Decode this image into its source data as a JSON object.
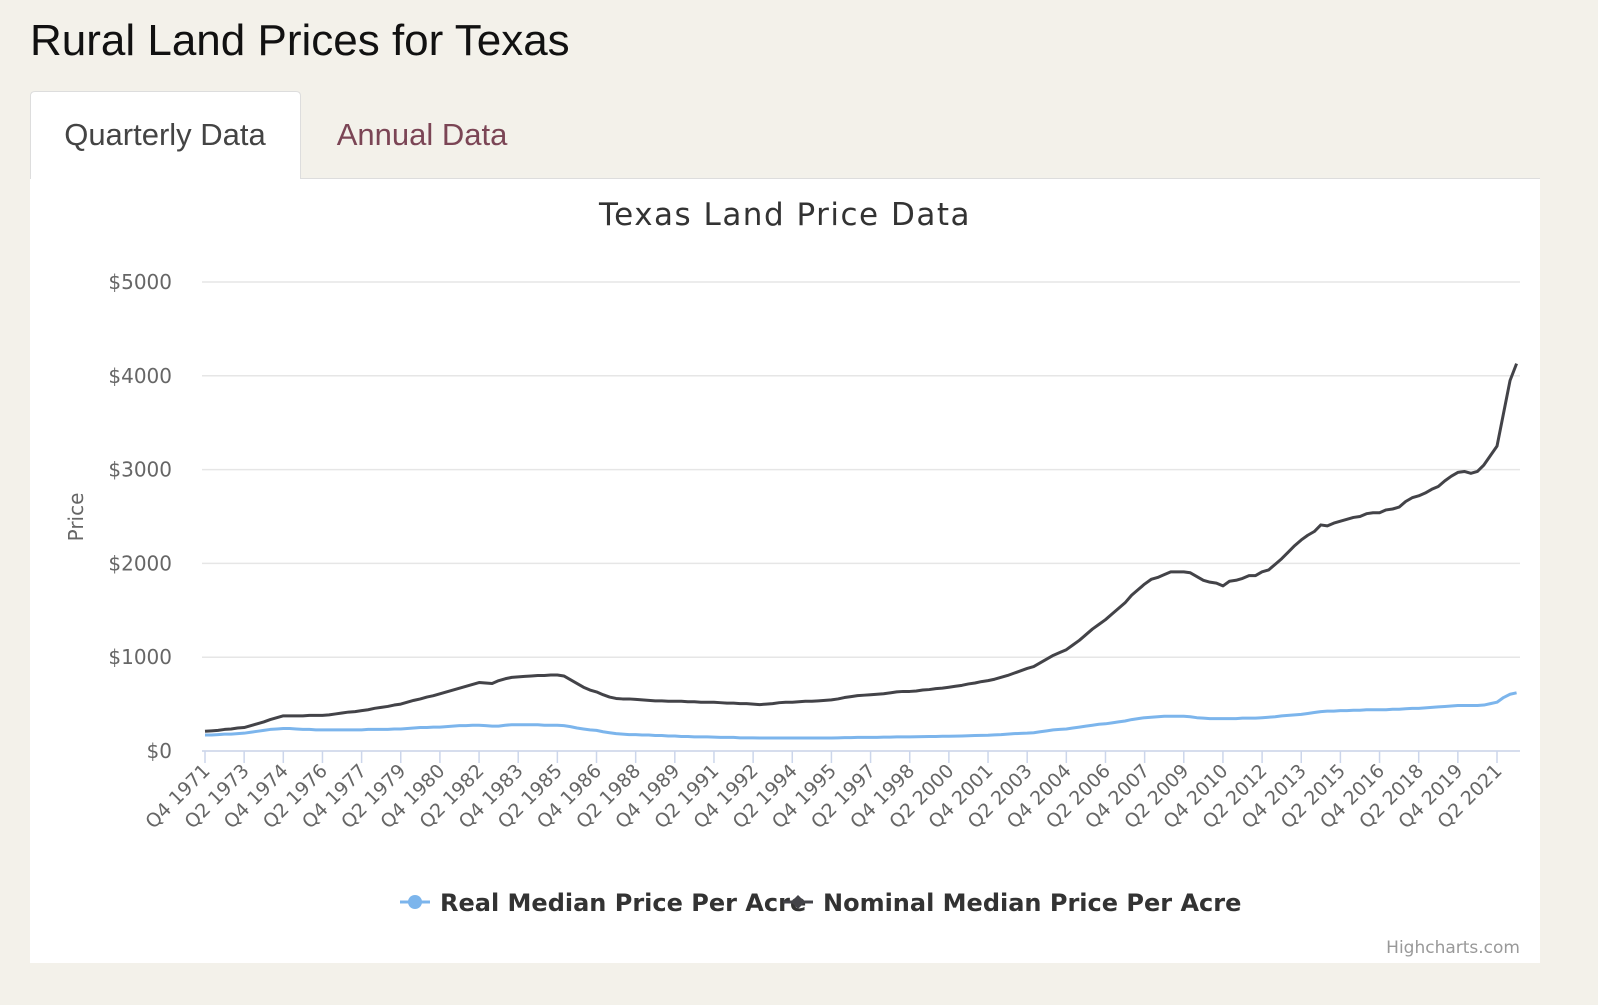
{
  "header": {
    "title": "Rural Land Prices for Texas"
  },
  "tabs": [
    "Quarterly Data",
    "Annual Data"
  ],
  "chart_data": {
    "type": "line",
    "title": "Texas Land Price Data",
    "y_axis_title": "Price",
    "credits": "Highcharts.com",
    "ylim": [
      0,
      5000
    ],
    "yticks": [
      {
        "value": 0,
        "label": "$0"
      },
      {
        "value": 1000,
        "label": "$1000"
      },
      {
        "value": 2000,
        "label": "$2000"
      },
      {
        "value": 3000,
        "label": "$3000"
      },
      {
        "value": 4000,
        "label": "$4000"
      },
      {
        "value": 5000,
        "label": "$5000"
      }
    ],
    "grid": true,
    "legend": "bottom",
    "categories": [
      "Q4 1971",
      null,
      null,
      null,
      null,
      null,
      "Q2 1973",
      null,
      null,
      null,
      null,
      null,
      "Q4 1974",
      null,
      null,
      null,
      null,
      null,
      "Q2 1976",
      null,
      null,
      null,
      null,
      null,
      "Q4 1977",
      null,
      null,
      null,
      null,
      null,
      "Q2 1979",
      null,
      null,
      null,
      null,
      null,
      "Q4 1980",
      null,
      null,
      null,
      null,
      null,
      "Q2 1982",
      null,
      null,
      null,
      null,
      null,
      "Q4 1983",
      null,
      null,
      null,
      null,
      null,
      "Q2 1985",
      null,
      null,
      null,
      null,
      null,
      "Q4 1986",
      null,
      null,
      null,
      null,
      null,
      "Q2 1988",
      null,
      null,
      null,
      null,
      null,
      "Q4 1989",
      null,
      null,
      null,
      null,
      null,
      "Q2 1991",
      null,
      null,
      null,
      null,
      null,
      "Q4 1992",
      null,
      null,
      null,
      null,
      null,
      "Q2 1994",
      null,
      null,
      null,
      null,
      null,
      "Q4 1995",
      null,
      null,
      null,
      null,
      null,
      "Q2 1997",
      null,
      null,
      null,
      null,
      null,
      "Q4 1998",
      null,
      null,
      null,
      null,
      null,
      "Q2 2000",
      null,
      null,
      null,
      null,
      null,
      "Q4 2001",
      null,
      null,
      null,
      null,
      null,
      "Q2 2003",
      null,
      null,
      null,
      null,
      null,
      "Q4 2004",
      null,
      null,
      null,
      null,
      null,
      "Q2 2006",
      null,
      null,
      null,
      null,
      null,
      "Q4 2007",
      null,
      null,
      null,
      null,
      null,
      "Q2 2009",
      null,
      null,
      null,
      null,
      null,
      "Q4 2010",
      null,
      null,
      null,
      null,
      null,
      "Q2 2012",
      null,
      null,
      null,
      null,
      null,
      "Q4 2013",
      null,
      null,
      null,
      null,
      null,
      "Q2 2015",
      null,
      null,
      null,
      null,
      null,
      "Q4 2016",
      null,
      null,
      null,
      null,
      null,
      "Q2 2018",
      null,
      null,
      null,
      null,
      null,
      "Q4 2019",
      null,
      null,
      null,
      null,
      null,
      "Q2 2021",
      null,
      null,
      null
    ],
    "series": [
      {
        "name": "Real Median Price Per Acre",
        "color": "#7cb5ec",
        "marker": "circle",
        "values": [
          170,
          170,
          175,
          180,
          180,
          185,
          190,
          200,
          210,
          220,
          230,
          235,
          240,
          240,
          235,
          230,
          230,
          225,
          225,
          225,
          225,
          225,
          225,
          225,
          225,
          230,
          230,
          230,
          230,
          235,
          235,
          240,
          245,
          250,
          250,
          255,
          255,
          260,
          265,
          270,
          270,
          275,
          275,
          270,
          265,
          265,
          275,
          280,
          280,
          280,
          280,
          280,
          275,
          275,
          275,
          270,
          260,
          245,
          235,
          225,
          220,
          205,
          195,
          185,
          180,
          175,
          175,
          170,
          170,
          165,
          165,
          160,
          160,
          155,
          155,
          150,
          150,
          150,
          148,
          145,
          145,
          145,
          140,
          140,
          140,
          138,
          138,
          138,
          138,
          138,
          138,
          138,
          138,
          138,
          138,
          138,
          138,
          140,
          142,
          143,
          145,
          145,
          145,
          145,
          148,
          148,
          150,
          150,
          150,
          152,
          153,
          155,
          155,
          157,
          157,
          158,
          160,
          162,
          165,
          167,
          168,
          172,
          175,
          180,
          185,
          188,
          190,
          195,
          205,
          215,
          225,
          230,
          235,
          245,
          255,
          265,
          275,
          285,
          290,
          300,
          310,
          320,
          335,
          345,
          355,
          360,
          365,
          370,
          370,
          370,
          370,
          365,
          355,
          350,
          345,
          345,
          345,
          345,
          345,
          350,
          350,
          350,
          355,
          360,
          365,
          375,
          380,
          385,
          390,
          400,
          410,
          420,
          425,
          425,
          430,
          430,
          435,
          435,
          440,
          440,
          440,
          440,
          445,
          445,
          450,
          455,
          455,
          460,
          465,
          470,
          475,
          480,
          485,
          485,
          485,
          485,
          490,
          505,
          520,
          570,
          605,
          620
        ]
      },
      {
        "name": "Nominal Median Price Per Acre",
        "color": "#434348",
        "marker": "diamond",
        "values": [
          210,
          215,
          220,
          230,
          235,
          245,
          250,
          270,
          290,
          310,
          335,
          355,
          375,
          375,
          375,
          375,
          380,
          380,
          380,
          385,
          395,
          405,
          415,
          420,
          430,
          440,
          455,
          465,
          475,
          490,
          500,
          520,
          540,
          555,
          575,
          590,
          610,
          630,
          650,
          670,
          690,
          710,
          730,
          725,
          720,
          750,
          770,
          785,
          790,
          795,
          800,
          805,
          805,
          810,
          810,
          800,
          760,
          720,
          680,
          650,
          630,
          600,
          575,
          560,
          555,
          555,
          550,
          545,
          540,
          535,
          535,
          530,
          530,
          530,
          525,
          525,
          520,
          520,
          520,
          515,
          510,
          510,
          505,
          505,
          500,
          495,
          500,
          505,
          515,
          520,
          520,
          525,
          530,
          530,
          535,
          540,
          545,
          555,
          570,
          580,
          590,
          595,
          600,
          605,
          610,
          620,
          630,
          635,
          635,
          640,
          650,
          655,
          665,
          670,
          680,
          690,
          700,
          715,
          725,
          740,
          750,
          765,
          785,
          805,
          830,
          855,
          880,
          900,
          940,
          980,
          1020,
          1050,
          1080,
          1130,
          1180,
          1240,
          1300,
          1350,
          1400,
          1460,
          1520,
          1580,
          1660,
          1720,
          1780,
          1830,
          1850,
          1880,
          1910,
          1910,
          1910,
          1900,
          1860,
          1820,
          1800,
          1790,
          1760,
          1810,
          1820,
          1840,
          1870,
          1870,
          1910,
          1930,
          1990,
          2050,
          2120,
          2190,
          2250,
          2300,
          2340,
          2410,
          2400,
          2430,
          2450,
          2470,
          2490,
          2500,
          2530,
          2540,
          2540,
          2570,
          2580,
          2600,
          2660,
          2700,
          2720,
          2750,
          2790,
          2820,
          2880,
          2930,
          2970,
          2980,
          2960,
          2980,
          3050,
          3150,
          3250,
          3600,
          3950,
          4130
        ]
      }
    ]
  }
}
